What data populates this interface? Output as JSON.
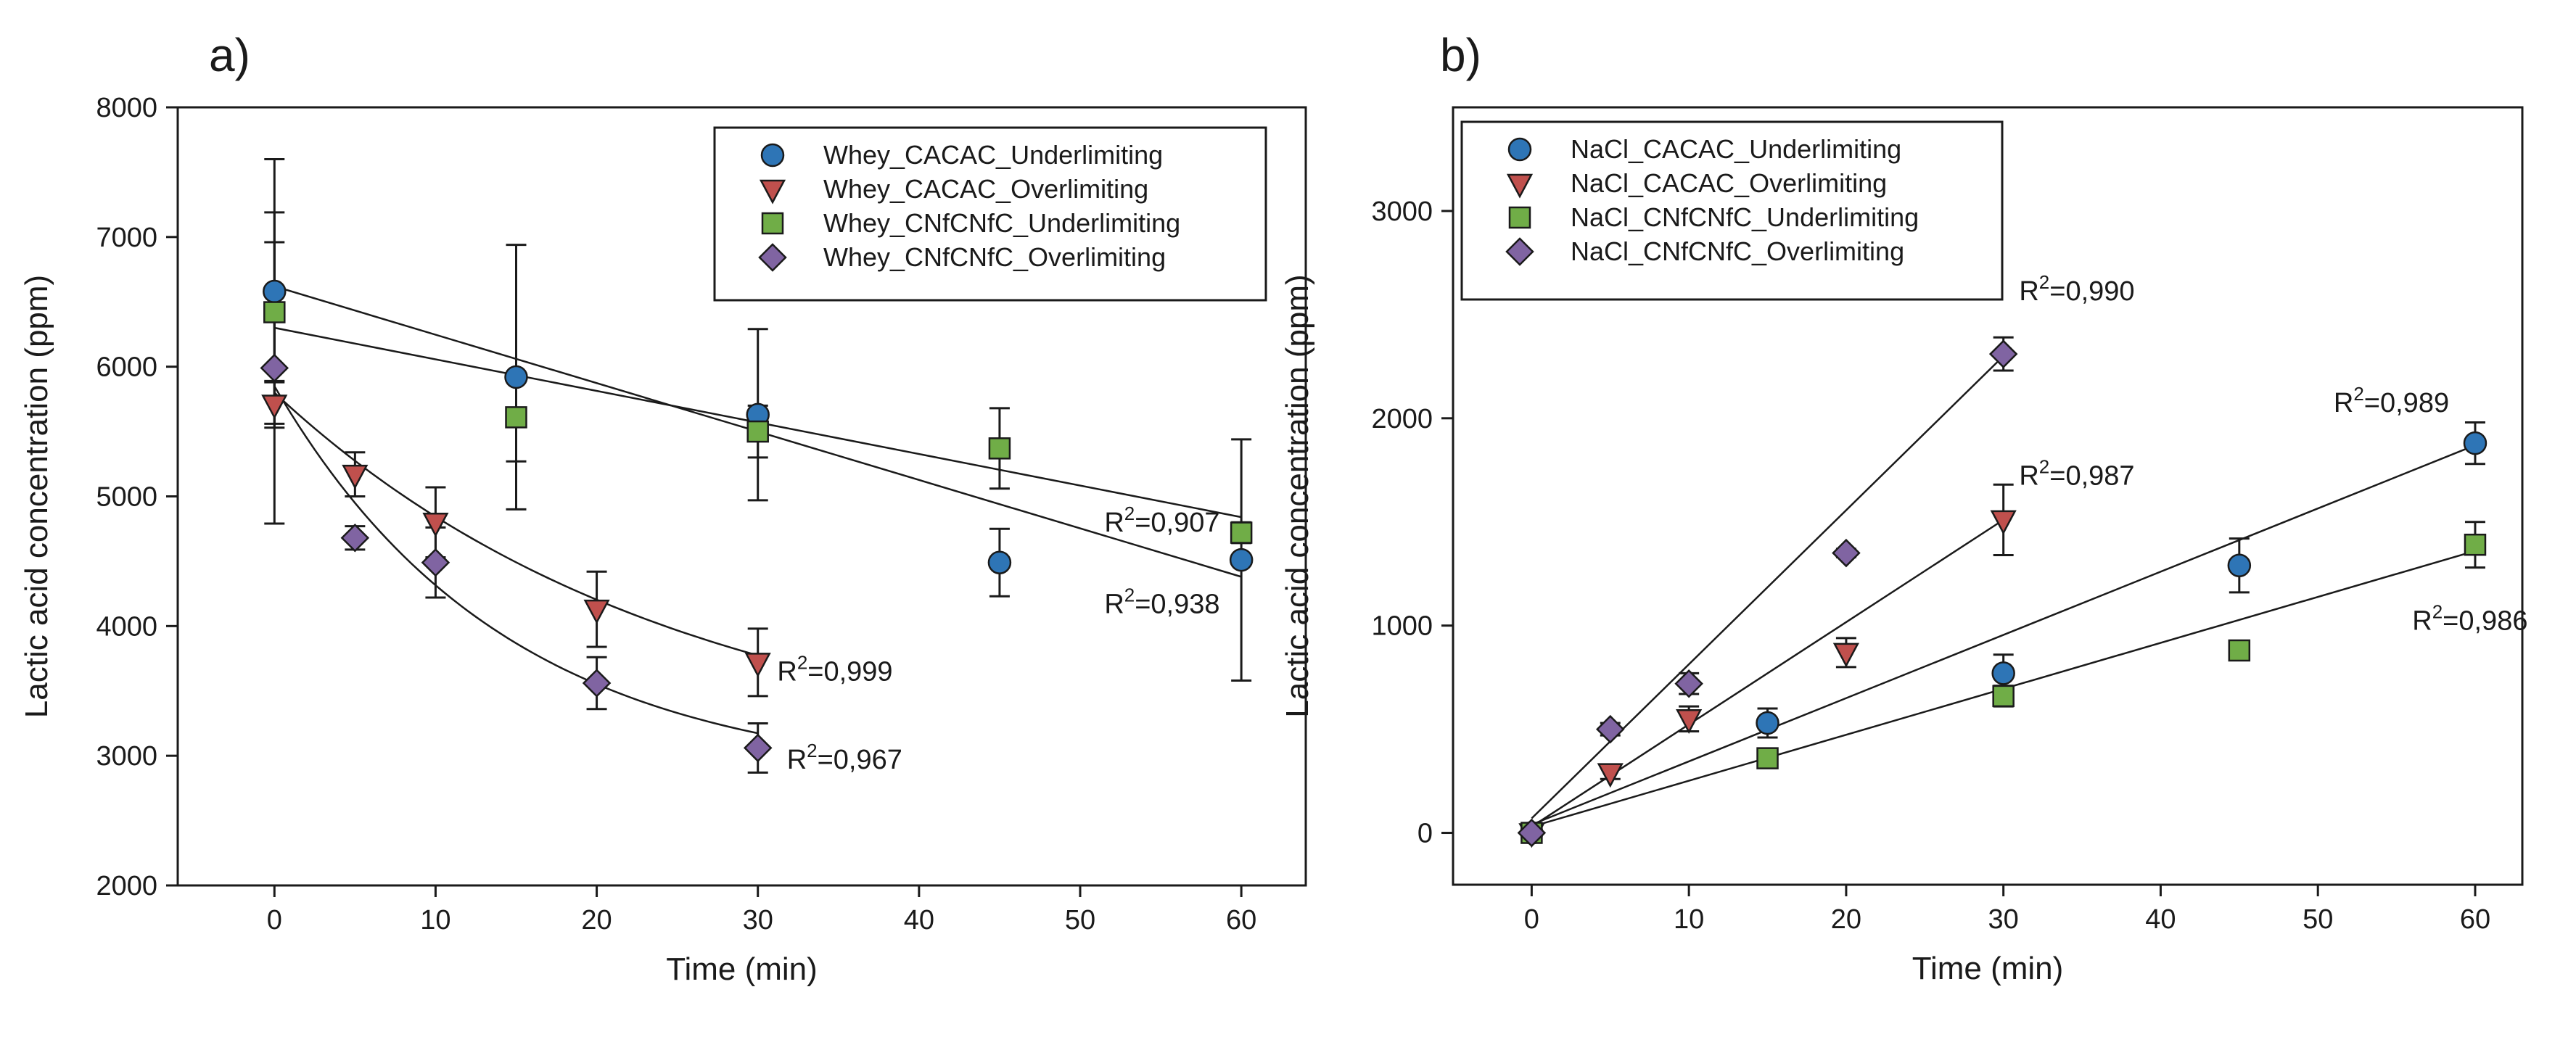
{
  "chart_data": [
    {
      "panel": "a)",
      "type": "scatter",
      "xlabel": "Time (min)",
      "ylabel": "Lactic acid concentration (ppm)",
      "xlim": [
        -6,
        64
      ],
      "ylim": [
        2000,
        8000
      ],
      "xticks": [
        0,
        10,
        20,
        30,
        40,
        50,
        60
      ],
      "yticks": [
        2000,
        3000,
        4000,
        5000,
        6000,
        7000,
        8000
      ],
      "legend_position": "top-right",
      "series": [
        {
          "name": "Whey_CACAC_Underlimiting",
          "marker": "circle",
          "color": "#2e75b6",
          "points": [
            {
              "x": 0,
              "y": 6580,
              "err": 1020
            },
            {
              "x": 15,
              "y": 5920,
              "err": 1020
            },
            {
              "x": 30,
              "y": 5630,
              "err": 660
            },
            {
              "x": 45,
              "y": 4490,
              "err": 260
            },
            {
              "x": 60,
              "y": 4510,
              "err": 930
            }
          ],
          "fit": {
            "kind": "linear",
            "x0": 0,
            "y0": 6620,
            "x1": 60,
            "y1": 4380
          },
          "r2": "0,938"
        },
        {
          "name": "Whey_CACAC_Overlimiting",
          "marker": "triangle-down",
          "color": "#c0504d",
          "points": [
            {
              "x": 0,
              "y": 5710,
              "err": 180
            },
            {
              "x": 5,
              "y": 5170,
              "err": 170
            },
            {
              "x": 10,
              "y": 4800,
              "err": 270
            },
            {
              "x": 20,
              "y": 4130,
              "err": 290
            },
            {
              "x": 30,
              "y": 3720,
              "err": 260
            }
          ],
          "fit": {
            "kind": "exponential",
            "xmax": 30,
            "yinf": 2900,
            "a": 2900,
            "k": 0.04
          },
          "r2": "0,999"
        },
        {
          "name": "Whey_CNfCNfC_Underlimiting",
          "marker": "square",
          "color": "#70ad47",
          "points": [
            {
              "x": 0,
              "y": 6420,
              "err": 540
            },
            {
              "x": 15,
              "y": 5610,
              "err": 340
            },
            {
              "x": 30,
              "y": 5500,
              "err": 200
            },
            {
              "x": 45,
              "y": 5370,
              "err": 310
            },
            {
              "x": 60,
              "y": 4720,
              "err": 80
            }
          ],
          "fit": {
            "kind": "linear",
            "x0": 0,
            "y0": 6300,
            "x1": 60,
            "y1": 4840
          },
          "r2": "0,907"
        },
        {
          "name": "Whey_CNfCNfC_Overlimiting",
          "marker": "diamond",
          "color": "#8064a2",
          "points": [
            {
              "x": 0,
              "y": 5990,
              "err": 1200
            },
            {
              "x": 5,
              "y": 4680,
              "err": 90
            },
            {
              "x": 10,
              "y": 4490,
              "err": 270
            },
            {
              "x": 20,
              "y": 3560,
              "err": 200
            },
            {
              "x": 30,
              "y": 3060,
              "err": 190
            }
          ],
          "fit": {
            "kind": "exponential",
            "xmax": 30,
            "yinf": 2800,
            "a": 3050,
            "k": 0.07
          },
          "r2": "0,967"
        }
      ],
      "annotations": [
        {
          "text": "0,907",
          "series": 2,
          "x": 51.5,
          "y": 4730
        },
        {
          "text": "0,938",
          "series": 0,
          "x": 51.5,
          "y": 4100
        },
        {
          "text": "0,999",
          "series": 1,
          "x": 31.2,
          "y": 3580
        },
        {
          "text": "0,967",
          "series": 3,
          "x": 31.8,
          "y": 2900
        }
      ]
    },
    {
      "panel": "b)",
      "type": "scatter",
      "xlabel": "Time (min)",
      "ylabel": "Lactic acid concentration (ppm)",
      "xlim": [
        -5,
        63
      ],
      "ylim": [
        -250,
        3500
      ],
      "xticks": [
        0,
        10,
        20,
        30,
        40,
        50,
        60
      ],
      "yticks": [
        0,
        1000,
        2000,
        3000
      ],
      "legend_position": "top-left",
      "series": [
        {
          "name": "NaCl_CACAC_Underlimiting",
          "marker": "circle",
          "color": "#2e75b6",
          "points": [
            {
              "x": 0,
              "y": 0,
              "err": 0
            },
            {
              "x": 15,
              "y": 530,
              "err": 70
            },
            {
              "x": 30,
              "y": 770,
              "err": 90
            },
            {
              "x": 45,
              "y": 1290,
              "err": 130
            },
            {
              "x": 60,
              "y": 1880,
              "err": 100
            }
          ],
          "fit": {
            "kind": "linear",
            "x0": 0,
            "y0": 40,
            "x1": 60,
            "y1": 1870
          },
          "r2": "0,989"
        },
        {
          "name": "NaCl_CACAC_Overlimiting",
          "marker": "triangle-down",
          "color": "#c0504d",
          "points": [
            {
              "x": 0,
              "y": 0,
              "err": 0
            },
            {
              "x": 5,
              "y": 290,
              "err": 30
            },
            {
              "x": 10,
              "y": 550,
              "err": 60
            },
            {
              "x": 20,
              "y": 870,
              "err": 70
            },
            {
              "x": 30,
              "y": 1510,
              "err": 170
            }
          ],
          "fit": {
            "kind": "linear",
            "x0": 0,
            "y0": 30,
            "x1": 30,
            "y1": 1510
          },
          "r2": "0,987"
        },
        {
          "name": "NaCl_CNfCNfC_Underlimiting",
          "marker": "square",
          "color": "#70ad47",
          "points": [
            {
              "x": 0,
              "y": 0,
              "err": 0
            },
            {
              "x": 15,
              "y": 360,
              "err": 40
            },
            {
              "x": 30,
              "y": 660,
              "err": 50
            },
            {
              "x": 45,
              "y": 880,
              "err": 40
            },
            {
              "x": 60,
              "y": 1390,
              "err": 110
            }
          ],
          "fit": {
            "kind": "linear",
            "x0": 0,
            "y0": 30,
            "x1": 60,
            "y1": 1360
          },
          "r2": "0,986"
        },
        {
          "name": "NaCl_CNfCNfC_Overlimiting",
          "marker": "diamond",
          "color": "#8064a2",
          "points": [
            {
              "x": 0,
              "y": 0,
              "err": 0
            },
            {
              "x": 5,
              "y": 500,
              "err": 30
            },
            {
              "x": 10,
              "y": 720,
              "err": 50
            },
            {
              "x": 20,
              "y": 1350,
              "err": 20
            },
            {
              "x": 30,
              "y": 2310,
              "err": 80
            }
          ],
          "fit": {
            "kind": "linear",
            "x0": 0,
            "y0": 70,
            "x1": 30,
            "y1": 2300
          },
          "r2": "0,990"
        }
      ],
      "annotations": [
        {
          "text": "0,990",
          "series": 3,
          "x": 31,
          "y": 2570
        },
        {
          "text": "0,987",
          "series": 1,
          "x": 31,
          "y": 1680
        },
        {
          "text": "0,989",
          "series": 0,
          "x": 51,
          "y": 2030
        },
        {
          "text": "0,986",
          "series": 2,
          "x": 56,
          "y": 980
        }
      ]
    }
  ]
}
